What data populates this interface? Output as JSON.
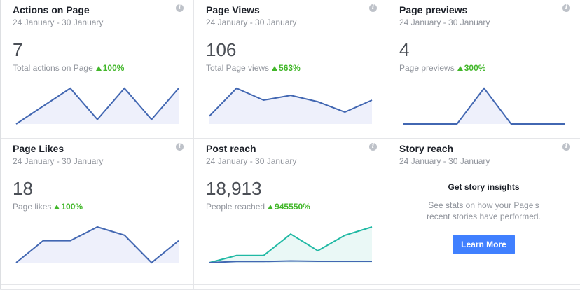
{
  "cards": [
    {
      "title": "Actions on Page",
      "date": "24 January - 30 January",
      "value": "7",
      "sub_label": "Total actions on Page",
      "change": "100%",
      "trend_points": [
        0,
        40,
        80,
        10,
        80,
        10,
        80
      ],
      "secondary_points": []
    },
    {
      "title": "Page Views",
      "date": "24 January - 30 January",
      "value": "106",
      "sub_label": "Total Page views",
      "change": "563%",
      "trend_points": [
        10,
        45,
        30,
        36,
        28,
        15,
        30
      ],
      "secondary_points": []
    },
    {
      "title": "Page previews",
      "date": "24 January - 30 January",
      "value": "4",
      "sub_label": "Page previews",
      "change": "300%",
      "trend_points": [
        0,
        0,
        0,
        60,
        0,
        0,
        0
      ],
      "secondary_points": []
    },
    {
      "title": "Page Likes",
      "date": "24 January - 30 January",
      "value": "18",
      "sub_label": "Page likes",
      "change": "100%",
      "trend_points": [
        0,
        40,
        40,
        65,
        50,
        0,
        40
      ],
      "secondary_points": []
    },
    {
      "title": "Post reach",
      "date": "24 January - 30 January",
      "value": "18,913",
      "sub_label": "People reached",
      "change": "945550%",
      "trend_points": [
        0,
        6,
        6,
        24,
        10,
        23,
        30
      ],
      "secondary_points": [
        0,
        1,
        1,
        1.5,
        1.2,
        1.2,
        1.2
      ]
    }
  ],
  "story": {
    "title": "Story reach",
    "date": "24 January - 30 January",
    "heading": "Get story insights",
    "description": "See stats on how your Page's recent stories have performed.",
    "button_label": "Learn More"
  },
  "colors": {
    "line": "#4267b2",
    "fill": "#eef0fb",
    "reach_line": "#20b9a4",
    "reach_fill": "#eaf8f6",
    "trend_up": "#42b72a",
    "button": "#4080ff"
  },
  "icons": {
    "info": "info-icon",
    "trend": "triangle-up-icon"
  }
}
